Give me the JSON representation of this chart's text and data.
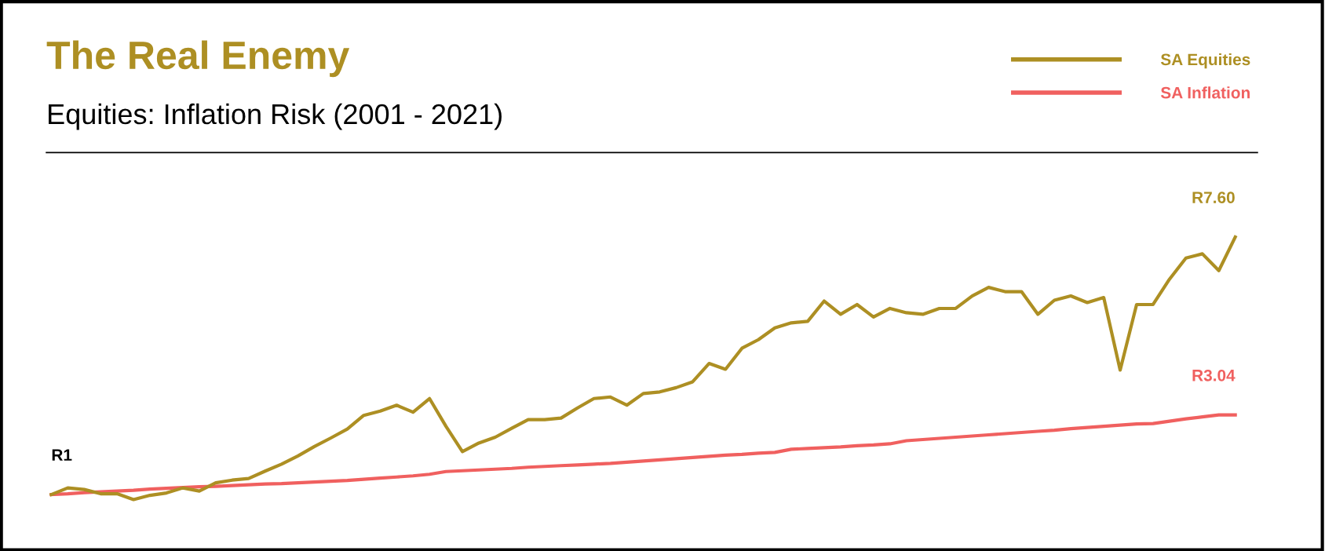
{
  "chart_data": {
    "type": "line",
    "title": "The Real Enemy",
    "subtitle": "Equities: Inflation Risk (2001 - 2021)",
    "categories": [
      null,
      null,
      null,
      null,
      null,
      null,
      null,
      null,
      null,
      null,
      null,
      null,
      null,
      null,
      null,
      null,
      null,
      null,
      null,
      null,
      null,
      null,
      null,
      null,
      null,
      null,
      null,
      null,
      null,
      null,
      null,
      null,
      null,
      null,
      null,
      null,
      null,
      null,
      null,
      null,
      null,
      null,
      null,
      null,
      null,
      null,
      null,
      null,
      null,
      null,
      null,
      null,
      null,
      null,
      null,
      null,
      null,
      null,
      null,
      null,
      null,
      null,
      null,
      null,
      null,
      null,
      null,
      null,
      null,
      null,
      null,
      null,
      null
    ],
    "series": [
      {
        "name": "SA Equities",
        "color": "#ad8f23",
        "values": [
          1.0,
          1.17,
          1.13,
          1.02,
          1.02,
          0.87,
          0.98,
          1.04,
          1.17,
          1.09,
          1.3,
          1.37,
          1.41,
          1.6,
          1.78,
          1.99,
          2.23,
          2.45,
          2.68,
          3.03,
          3.14,
          3.29,
          3.11,
          3.46,
          2.75,
          2.1,
          2.32,
          2.47,
          2.7,
          2.92,
          2.92,
          2.96,
          3.22,
          3.46,
          3.5,
          3.29,
          3.59,
          3.63,
          3.74,
          3.89,
          4.36,
          4.21,
          4.75,
          4.97,
          5.27,
          5.4,
          5.44,
          5.96,
          5.62,
          5.87,
          5.55,
          5.77,
          5.66,
          5.62,
          5.77,
          5.77,
          6.09,
          6.31,
          6.2,
          6.2,
          5.62,
          5.98,
          6.09,
          5.92,
          6.05,
          4.19,
          5.87,
          5.87,
          6.52,
          7.06,
          7.17,
          6.74,
          7.6
        ],
        "value_labels": [
          "R1",
          null,
          null,
          null,
          null,
          null,
          null,
          null,
          null,
          null,
          null,
          null,
          null,
          null,
          null,
          null,
          null,
          null,
          null,
          null,
          null,
          null,
          null,
          null,
          null,
          null,
          null,
          null,
          null,
          null,
          null,
          null,
          null,
          null,
          null,
          null,
          null,
          null,
          null,
          null,
          null,
          null,
          null,
          null,
          null,
          null,
          null,
          null,
          null,
          null,
          null,
          null,
          null,
          null,
          null,
          null,
          null,
          null,
          null,
          null,
          null,
          null,
          null,
          null,
          null,
          null,
          null,
          null,
          null,
          null,
          null,
          null,
          "R7.60"
        ]
      },
      {
        "name": "SA Inflation",
        "color": "#f0605f",
        "values": [
          1.0,
          1.02,
          1.05,
          1.07,
          1.09,
          1.11,
          1.14,
          1.16,
          1.18,
          1.2,
          1.21,
          1.23,
          1.25,
          1.27,
          1.28,
          1.3,
          1.32,
          1.34,
          1.36,
          1.39,
          1.42,
          1.45,
          1.48,
          1.52,
          1.59,
          1.61,
          1.63,
          1.65,
          1.67,
          1.7,
          1.72,
          1.74,
          1.76,
          1.78,
          1.8,
          1.83,
          1.86,
          1.89,
          1.92,
          1.95,
          1.98,
          2.01,
          2.03,
          2.06,
          2.08,
          2.16,
          2.18,
          2.2,
          2.22,
          2.25,
          2.27,
          2.3,
          2.38,
          2.41,
          2.44,
          2.47,
          2.5,
          2.53,
          2.56,
          2.59,
          2.62,
          2.65,
          2.69,
          2.72,
          2.75,
          2.78,
          2.81,
          2.82,
          2.88,
          2.94,
          2.99,
          3.04,
          3.04
        ],
        "value_labels": [
          null,
          null,
          null,
          null,
          null,
          null,
          null,
          null,
          null,
          null,
          null,
          null,
          null,
          null,
          null,
          null,
          null,
          null,
          null,
          null,
          null,
          null,
          null,
          null,
          null,
          null,
          null,
          null,
          null,
          null,
          null,
          null,
          null,
          null,
          null,
          null,
          null,
          null,
          null,
          null,
          null,
          null,
          null,
          null,
          null,
          null,
          null,
          null,
          null,
          null,
          null,
          null,
          null,
          null,
          null,
          null,
          null,
          null,
          null,
          null,
          null,
          null,
          null,
          null,
          null,
          null,
          null,
          null,
          null,
          null,
          null,
          null,
          "R3.04"
        ]
      }
    ],
    "tick_labels": false,
    "grid": false,
    "legend": "top right",
    "marker": "none",
    "line_style": "solid"
  }
}
